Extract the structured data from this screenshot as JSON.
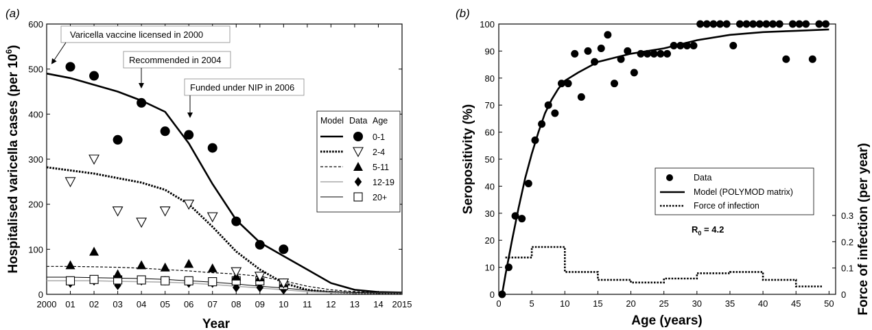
{
  "chart_data": [
    {
      "type": "line",
      "panel_label": "(a)",
      "xlabel": "Year",
      "ylabel": "Hospitalised varicella cases (per 10",
      "ylabel_sup": "6",
      "ylabel_close": ")",
      "xlim": [
        2000,
        2015
      ],
      "ylim": [
        0,
        600
      ],
      "xticks": [
        {
          "x": 2000,
          "label": "2000"
        },
        {
          "x": 2001,
          "label": "01"
        },
        {
          "x": 2002,
          "label": "02"
        },
        {
          "x": 2003,
          "label": "03"
        },
        {
          "x": 2004,
          "label": "04"
        },
        {
          "x": 2005,
          "label": "05"
        },
        {
          "x": 2006,
          "label": "06"
        },
        {
          "x": 2007,
          "label": "07"
        },
        {
          "x": 2008,
          "label": "08"
        },
        {
          "x": 2009,
          "label": "09"
        },
        {
          "x": 2010,
          "label": "10"
        },
        {
          "x": 2011,
          "label": "11"
        },
        {
          "x": 2012,
          "label": "12"
        },
        {
          "x": 2013,
          "label": "13"
        },
        {
          "x": 2014,
          "label": "14"
        },
        {
          "x": 2015,
          "label": "2015"
        }
      ],
      "yticks": [
        0,
        100,
        200,
        300,
        400,
        500,
        600
      ],
      "annotations": [
        {
          "text": "Varicella vaccine licensed in 2000",
          "x": 2000
        },
        {
          "text": "Recommended in 2004",
          "x": 2004
        },
        {
          "text": "Funded under NIP in 2006",
          "x": 2006
        }
      ],
      "legend": {
        "headers": [
          "Model",
          "Data",
          "Age"
        ],
        "rows": [
          {
            "age": "0-1",
            "line": "solid-thick",
            "marker": "filled-circle"
          },
          {
            "age": "2-4",
            "line": "dotted-thick",
            "marker": "open-triangle-down"
          },
          {
            "age": "5-11",
            "line": "dashed-thin",
            "marker": "filled-triangle-up"
          },
          {
            "age": "12-19",
            "line": "solid-light",
            "marker": "filled-diamond"
          },
          {
            "age": "20+",
            "line": "solid-thin",
            "marker": "open-square"
          }
        ]
      },
      "series": [
        {
          "name": "0-1",
          "model": [
            [
              2000,
              490
            ],
            [
              2001,
              480
            ],
            [
              2002,
              465
            ],
            [
              2003,
              450
            ],
            [
              2004,
              430
            ],
            [
              2005,
              405
            ],
            [
              2006,
              335
            ],
            [
              2007,
              245
            ],
            [
              2008,
              165
            ],
            [
              2009,
              115
            ],
            [
              2010,
              85
            ],
            [
              2011,
              55
            ],
            [
              2012,
              25
            ],
            [
              2013,
              10
            ],
            [
              2014,
              5
            ],
            [
              2015,
              4
            ]
          ],
          "data": [
            [
              2001,
              505
            ],
            [
              2002,
              485
            ],
            [
              2003,
              343
            ],
            [
              2004,
              425
            ],
            [
              2005,
              362
            ],
            [
              2006,
              354
            ],
            [
              2007,
              325
            ],
            [
              2008,
              162
            ],
            [
              2009,
              110
            ],
            [
              2010,
              100
            ]
          ]
        },
        {
          "name": "2-4",
          "model": [
            [
              2000,
              282
            ],
            [
              2001,
              275
            ],
            [
              2002,
              268
            ],
            [
              2003,
              258
            ],
            [
              2004,
              248
            ],
            [
              2005,
              232
            ],
            [
              2006,
              200
            ],
            [
              2007,
              150
            ],
            [
              2008,
              95
            ],
            [
              2009,
              55
            ],
            [
              2010,
              25
            ],
            [
              2011,
              10
            ],
            [
              2012,
              5
            ],
            [
              2013,
              3
            ],
            [
              2014,
              3
            ],
            [
              2015,
              3
            ]
          ],
          "data": [
            [
              2001,
              250
            ],
            [
              2002,
              300
            ],
            [
              2003,
              185
            ],
            [
              2004,
              160
            ],
            [
              2005,
              185
            ],
            [
              2006,
              200
            ],
            [
              2007,
              172
            ],
            [
              2008,
              50
            ],
            [
              2009,
              40
            ],
            [
              2010,
              25
            ]
          ]
        },
        {
          "name": "5-11",
          "model": [
            [
              2000,
              62
            ],
            [
              2001,
              62
            ],
            [
              2002,
              61
            ],
            [
              2003,
              60
            ],
            [
              2004,
              58
            ],
            [
              2005,
              55
            ],
            [
              2006,
              52
            ],
            [
              2007,
              48
            ],
            [
              2008,
              45
            ],
            [
              2009,
              40
            ],
            [
              2010,
              30
            ],
            [
              2011,
              18
            ],
            [
              2012,
              10
            ],
            [
              2013,
              6
            ],
            [
              2014,
              4
            ],
            [
              2015,
              4
            ]
          ],
          "data": [
            [
              2001,
              65
            ],
            [
              2002,
              95
            ],
            [
              2003,
              45
            ],
            [
              2004,
              65
            ],
            [
              2005,
              60
            ],
            [
              2006,
              68
            ],
            [
              2007,
              58
            ],
            [
              2008,
              40
            ],
            [
              2009,
              38
            ],
            [
              2010,
              25
            ]
          ]
        },
        {
          "name": "12-19",
          "model": [
            [
              2000,
              30
            ],
            [
              2001,
              30
            ],
            [
              2002,
              30
            ],
            [
              2003,
              29
            ],
            [
              2004,
              28
            ],
            [
              2005,
              27
            ],
            [
              2006,
              25
            ],
            [
              2007,
              22
            ],
            [
              2008,
              18
            ],
            [
              2009,
              14
            ],
            [
              2010,
              10
            ],
            [
              2011,
              6
            ],
            [
              2012,
              4
            ],
            [
              2013,
              3
            ],
            [
              2014,
              3
            ],
            [
              2015,
              3
            ]
          ],
          "data": [
            [
              2001,
              25
            ],
            [
              2002,
              30
            ],
            [
              2003,
              20
            ],
            [
              2004,
              30
            ],
            [
              2005,
              30
            ],
            [
              2006,
              25
            ],
            [
              2007,
              25
            ],
            [
              2008,
              15
            ],
            [
              2009,
              15
            ],
            [
              2010,
              10
            ]
          ]
        },
        {
          "name": "20+",
          "model": [
            [
              2000,
              38
            ],
            [
              2001,
              38
            ],
            [
              2002,
              37
            ],
            [
              2003,
              36
            ],
            [
              2004,
              35
            ],
            [
              2005,
              33
            ],
            [
              2006,
              30
            ],
            [
              2007,
              27
            ],
            [
              2008,
              23
            ],
            [
              2009,
              18
            ],
            [
              2010,
              14
            ],
            [
              2011,
              9
            ],
            [
              2012,
              6
            ],
            [
              2013,
              4
            ],
            [
              2014,
              3
            ],
            [
              2015,
              3
            ]
          ],
          "data": [
            [
              2001,
              30
            ],
            [
              2002,
              33
            ],
            [
              2003,
              32
            ],
            [
              2004,
              32
            ],
            [
              2005,
              30
            ],
            [
              2006,
              30
            ],
            [
              2007,
              28
            ],
            [
              2008,
              30
            ],
            [
              2009,
              30
            ],
            [
              2010,
              20
            ]
          ]
        }
      ]
    },
    {
      "type": "line",
      "panel_label": "(b)",
      "xlabel": "Age (years)",
      "ylabel": "Seropositivity (%)",
      "y2label": "Force of infection (per year)",
      "xlim": [
        0,
        51
      ],
      "ylim": [
        0,
        100
      ],
      "y2lim": [
        0,
        0.3
      ],
      "xticks": [
        0,
        5,
        10,
        15,
        20,
        25,
        30,
        35,
        40,
        45,
        50
      ],
      "yticks": [
        0,
        10,
        20,
        30,
        40,
        50,
        60,
        70,
        80,
        90,
        100
      ],
      "y2ticks": [
        0,
        0.1,
        0.2,
        0.3
      ],
      "annotation": {
        "main": "R",
        "sub": "0",
        "rest": " = 4.2"
      },
      "legend": [
        {
          "label": "Data",
          "style": "filled-circle"
        },
        {
          "label": "Model (POLYMOD matrix)",
          "style": "solid"
        },
        {
          "label": "Force of infection",
          "style": "dotted"
        }
      ],
      "series": [
        {
          "name": "Data",
          "kind": "scatter",
          "points": [
            [
              0.5,
              0
            ],
            [
              1.5,
              10
            ],
            [
              2.5,
              29
            ],
            [
              3.5,
              28
            ],
            [
              4.5,
              41
            ],
            [
              5.5,
              57
            ],
            [
              6.5,
              63
            ],
            [
              7.5,
              70
            ],
            [
              8.5,
              67
            ],
            [
              9.5,
              78
            ],
            [
              10.5,
              78
            ],
            [
              11.5,
              89
            ],
            [
              12.5,
              73
            ],
            [
              13.5,
              90
            ],
            [
              14.5,
              86
            ],
            [
              15.5,
              91
            ],
            [
              16.5,
              96
            ],
            [
              17.5,
              78
            ],
            [
              18.5,
              87
            ],
            [
              19.5,
              90
            ],
            [
              20.5,
              82
            ],
            [
              21.5,
              89
            ],
            [
              22.5,
              89
            ],
            [
              23.5,
              89
            ],
            [
              24.5,
              89
            ],
            [
              25.5,
              89
            ],
            [
              26.5,
              92
            ],
            [
              27.5,
              92
            ],
            [
              28.5,
              92
            ],
            [
              29.5,
              92
            ],
            [
              30.5,
              100
            ],
            [
              31.5,
              100
            ],
            [
              32.5,
              100
            ],
            [
              33.5,
              100
            ],
            [
              34.5,
              100
            ],
            [
              35.5,
              92
            ],
            [
              36.5,
              100
            ],
            [
              37.5,
              100
            ],
            [
              38.5,
              100
            ],
            [
              39.5,
              100
            ],
            [
              40.5,
              100
            ],
            [
              41.5,
              100
            ],
            [
              42.5,
              100
            ],
            [
              43.5,
              87
            ],
            [
              44.5,
              100
            ],
            [
              45.5,
              100
            ],
            [
              46.5,
              100
            ],
            [
              47.5,
              87
            ],
            [
              48.5,
              100
            ],
            [
              49.5,
              100
            ]
          ]
        },
        {
          "name": "Model (POLYMOD matrix)",
          "kind": "line",
          "points": [
            [
              0.5,
              0
            ],
            [
              1,
              7
            ],
            [
              2,
              20
            ],
            [
              3,
              32
            ],
            [
              4,
              43
            ],
            [
              5,
              52
            ],
            [
              6,
              60
            ],
            [
              7,
              67
            ],
            [
              8,
              72
            ],
            [
              9,
              76
            ],
            [
              10,
              79
            ],
            [
              12,
              82
            ],
            [
              15,
              86
            ],
            [
              20,
              89
            ],
            [
              25,
              91
            ],
            [
              30,
              94
            ],
            [
              35,
              96
            ],
            [
              40,
              97
            ],
            [
              45,
              97.5
            ],
            [
              50,
              98
            ]
          ]
        },
        {
          "name": "Force of infection",
          "kind": "step",
          "points": [
            [
              1,
              0.14
            ],
            [
              5,
              0.14
            ],
            [
              5,
              0.18
            ],
            [
              10,
              0.18
            ],
            [
              10,
              0.085
            ],
            [
              15,
              0.085
            ],
            [
              15,
              0.055
            ],
            [
              20,
              0.055
            ],
            [
              20,
              0.045
            ],
            [
              25,
              0.045
            ],
            [
              25,
              0.06
            ],
            [
              30,
              0.06
            ],
            [
              30,
              0.08
            ],
            [
              35,
              0.08
            ],
            [
              35,
              0.085
            ],
            [
              40,
              0.085
            ],
            [
              40,
              0.055
            ],
            [
              45,
              0.055
            ],
            [
              45,
              0.03
            ],
            [
              49,
              0.03
            ]
          ]
        }
      ]
    }
  ]
}
